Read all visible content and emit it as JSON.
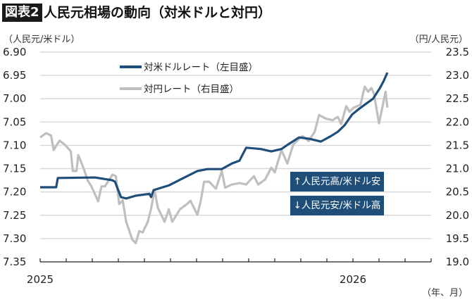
{
  "header": {
    "badge": "図表2",
    "title": "人民元相場の動向（対米ドルと対円）"
  },
  "chart_data": {
    "type": "line",
    "title": "人民元相場の動向（対米ドルと対円）",
    "xlabel": "（年、月）",
    "ylabel_left": "（人民元/米ドル）",
    "ylabel_right": "（円/人民元）",
    "x_tick_labels": [
      "2025",
      "2026"
    ],
    "x_range": [
      "2025-01",
      "2026-04"
    ],
    "y_left": {
      "min": 6.9,
      "max": 7.35,
      "inverted": true,
      "step": 0.05,
      "ticks": [
        "6.90",
        "6.95",
        "7.00",
        "7.05",
        "7.10",
        "7.15",
        "7.20",
        "7.25",
        "7.30",
        "7.35"
      ]
    },
    "y_right": {
      "min": 19.0,
      "max": 23.5,
      "step": 0.5,
      "ticks": [
        "23.5",
        "23.0",
        "22.5",
        "22.0",
        "21.5",
        "21.0",
        "20.5",
        "20.0",
        "19.5",
        "19.0"
      ]
    },
    "grid": true,
    "legend_placement": "top-left",
    "series": [
      {
        "name": "対米ドルレート（左目盛）",
        "axis": "left",
        "color": "#1f4e79",
        "points": [
          [
            "2025-01-01",
            7.19
          ],
          [
            "2025-01-20",
            7.19
          ],
          [
            "2025-01-22",
            7.17
          ],
          [
            "2025-03-04",
            7.169
          ],
          [
            "2025-03-25",
            7.175
          ],
          [
            "2025-03-28",
            7.178
          ],
          [
            "2025-04-04",
            7.211
          ],
          [
            "2025-04-10",
            7.214
          ],
          [
            "2025-04-21",
            7.208
          ],
          [
            "2025-05-07",
            7.204
          ],
          [
            "2025-05-09",
            7.211
          ],
          [
            "2025-05-12",
            7.196
          ],
          [
            "2025-05-30",
            7.186
          ],
          [
            "2025-06-16",
            7.17
          ],
          [
            "2025-07-02",
            7.155
          ],
          [
            "2025-07-14",
            7.151
          ],
          [
            "2025-07-31",
            7.151
          ],
          [
            "2025-08-12",
            7.139
          ],
          [
            "2025-08-21",
            7.133
          ],
          [
            "2025-08-29",
            7.105
          ],
          [
            "2025-09-15",
            7.108
          ],
          [
            "2025-09-27",
            7.113
          ],
          [
            "2025-10-09",
            7.108
          ],
          [
            "2025-10-17",
            7.098
          ],
          [
            "2025-10-30",
            7.083
          ],
          [
            "2025-11-11",
            7.086
          ],
          [
            "2025-11-24",
            7.092
          ],
          [
            "2025-12-06",
            7.08
          ],
          [
            "2025-12-14",
            7.071
          ],
          [
            "2025-12-22",
            7.057
          ],
          [
            "2025-12-31",
            7.034
          ],
          [
            "2026-01-08",
            7.022
          ],
          [
            "2026-01-25",
            7.0
          ],
          [
            "2026-02-02",
            6.977
          ],
          [
            "2026-02-06",
            6.962
          ],
          [
            "2026-02-10",
            6.944
          ]
        ]
      },
      {
        "name": "対円レート（右目盛）",
        "axis": "right",
        "color": "#bfbfbf",
        "points": [
          [
            "2025-01-01",
            21.67
          ],
          [
            "2025-01-08",
            21.76
          ],
          [
            "2025-01-14",
            21.71
          ],
          [
            "2025-01-17",
            21.4
          ],
          [
            "2025-01-24",
            21.6
          ],
          [
            "2025-01-30",
            21.52
          ],
          [
            "2025-02-06",
            21.37
          ],
          [
            "2025-02-08",
            20.95
          ],
          [
            "2025-02-12",
            20.95
          ],
          [
            "2025-02-14",
            21.29
          ],
          [
            "2025-02-20",
            20.99
          ],
          [
            "2025-02-24",
            20.75
          ],
          [
            "2025-02-28",
            20.62
          ],
          [
            "2025-03-08",
            20.3
          ],
          [
            "2025-03-12",
            20.62
          ],
          [
            "2025-03-16",
            20.62
          ],
          [
            "2025-03-25",
            20.87
          ],
          [
            "2025-03-29",
            20.84
          ],
          [
            "2025-04-02",
            20.24
          ],
          [
            "2025-04-06",
            20.32
          ],
          [
            "2025-04-10",
            19.86
          ],
          [
            "2025-04-17",
            19.48
          ],
          [
            "2025-04-21",
            19.4
          ],
          [
            "2025-04-25",
            19.66
          ],
          [
            "2025-04-29",
            19.63
          ],
          [
            "2025-05-05",
            19.86
          ],
          [
            "2025-05-09",
            20.14
          ],
          [
            "2025-05-13",
            20.54
          ],
          [
            "2025-05-17",
            20.16
          ],
          [
            "2025-05-25",
            19.86
          ],
          [
            "2025-05-30",
            20.13
          ],
          [
            "2025-06-03",
            19.86
          ],
          [
            "2025-06-12",
            20.13
          ],
          [
            "2025-06-20",
            20.24
          ],
          [
            "2025-06-24",
            20.31
          ],
          [
            "2025-07-02",
            20.01
          ],
          [
            "2025-07-06",
            20.31
          ],
          [
            "2025-07-10",
            20.72
          ],
          [
            "2025-07-16",
            20.72
          ],
          [
            "2025-07-24",
            20.57
          ],
          [
            "2025-07-31",
            20.95
          ],
          [
            "2025-08-04",
            20.59
          ],
          [
            "2025-08-12",
            20.66
          ],
          [
            "2025-08-21",
            20.69
          ],
          [
            "2025-08-29",
            20.66
          ],
          [
            "2025-09-07",
            20.84
          ],
          [
            "2025-09-12",
            20.66
          ],
          [
            "2025-09-20",
            20.77
          ],
          [
            "2025-09-27",
            21.02
          ],
          [
            "2025-10-01",
            20.92
          ],
          [
            "2025-10-09",
            21.4
          ],
          [
            "2025-10-16",
            21.11
          ],
          [
            "2025-10-23",
            21.52
          ],
          [
            "2025-11-01",
            21.67
          ],
          [
            "2025-11-03",
            21.7
          ],
          [
            "2025-11-10",
            21.59
          ],
          [
            "2025-11-17",
            21.79
          ],
          [
            "2025-11-22",
            22.15
          ],
          [
            "2025-11-30",
            22.07
          ],
          [
            "2025-12-08",
            22.04
          ],
          [
            "2025-12-14",
            22.11
          ],
          [
            "2025-12-18",
            21.96
          ],
          [
            "2025-12-24",
            22.34
          ],
          [
            "2025-12-28",
            22.22
          ],
          [
            "2026-01-02",
            22.31
          ],
          [
            "2026-01-10",
            22.37
          ],
          [
            "2026-01-15",
            22.76
          ],
          [
            "2026-01-19",
            22.65
          ],
          [
            "2026-01-23",
            22.73
          ],
          [
            "2026-01-26",
            22.61
          ],
          [
            "2026-02-01",
            21.97
          ],
          [
            "2026-02-08",
            22.65
          ],
          [
            "2026-02-10",
            22.31
          ]
        ]
      }
    ],
    "annotations": [
      "↑人民元高/米ドル安",
      "↓人民元安/米ドル高"
    ],
    "annotation_color": "#1f4e79"
  }
}
